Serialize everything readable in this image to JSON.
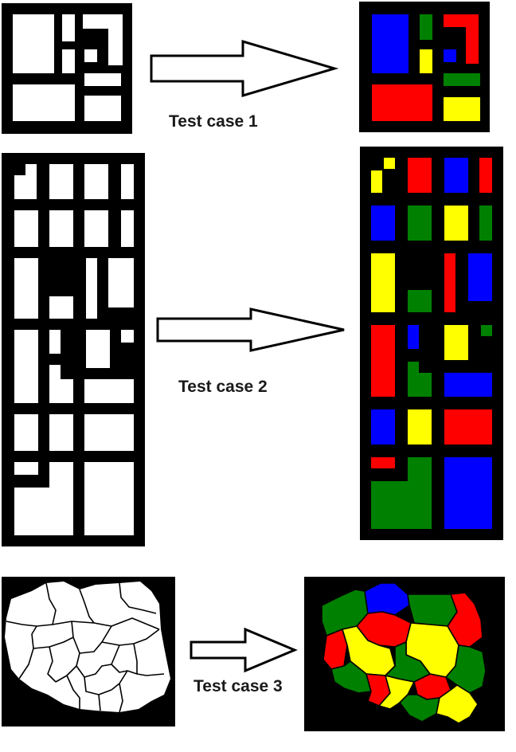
{
  "colors": {
    "red": "#ff0000",
    "blue": "#0000ff",
    "green": "#008000",
    "yellow": "#ffff00",
    "black": "#000000",
    "white": "#ffffff"
  },
  "cases": [
    {
      "label": "Test case 1"
    },
    {
      "label": "Test case 2"
    },
    {
      "label": "Test case 3"
    }
  ]
}
